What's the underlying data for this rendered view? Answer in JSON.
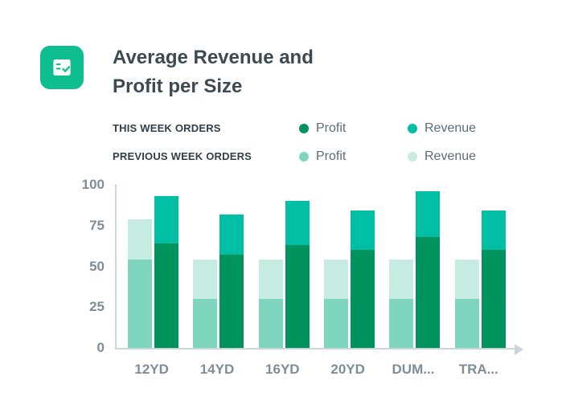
{
  "card": {
    "title_line1": "Average Revenue and",
    "title_line2": "Profit per Size",
    "icon_color": "#0EBE8E"
  },
  "legend": {
    "rows": [
      {
        "label": "THIS WEEK ORDERS",
        "items": [
          {
            "name": "Profit",
            "color": "#00935E"
          },
          {
            "name": "Revenue",
            "color": "#00BFA5"
          }
        ]
      },
      {
        "label": "PREVIOUS WEEK ORDERS",
        "items": [
          {
            "name": "Profit",
            "color": "#7FD6BF"
          },
          {
            "name": "Revenue",
            "color": "#C6ECE1"
          }
        ]
      }
    ]
  },
  "chart_data": {
    "type": "bar",
    "variant": "grouped-stacked",
    "title": "Average Revenue and Profit per Size",
    "categories": [
      "12YD",
      "14YD",
      "16YD",
      "20YD",
      "DUM...",
      "TRA..."
    ],
    "xlabel": "",
    "ylabel": "",
    "ylim": [
      0,
      100
    ],
    "yticks": [
      0,
      25,
      50,
      75,
      100
    ],
    "grid": false,
    "legend_position": "top",
    "groups": [
      {
        "name": "previous-week",
        "label": "PREVIOUS WEEK ORDERS",
        "series": [
          {
            "name": "Profit",
            "color": "#7FD6BF",
            "values": [
              54,
              30,
              30,
              30,
              30,
              30
            ]
          },
          {
            "name": "Revenue",
            "color": "#C6ECE1",
            "values": [
              79,
              54,
              54,
              54,
              54,
              54
            ]
          }
        ]
      },
      {
        "name": "this-week",
        "label": "THIS WEEK ORDERS",
        "series": [
          {
            "name": "Profit",
            "color": "#00935E",
            "values": [
              64,
              57,
              63,
              60,
              68,
              60
            ]
          },
          {
            "name": "Revenue",
            "color": "#00BFA5",
            "values": [
              93,
              82,
              90,
              84,
              96,
              84
            ]
          }
        ]
      }
    ]
  }
}
